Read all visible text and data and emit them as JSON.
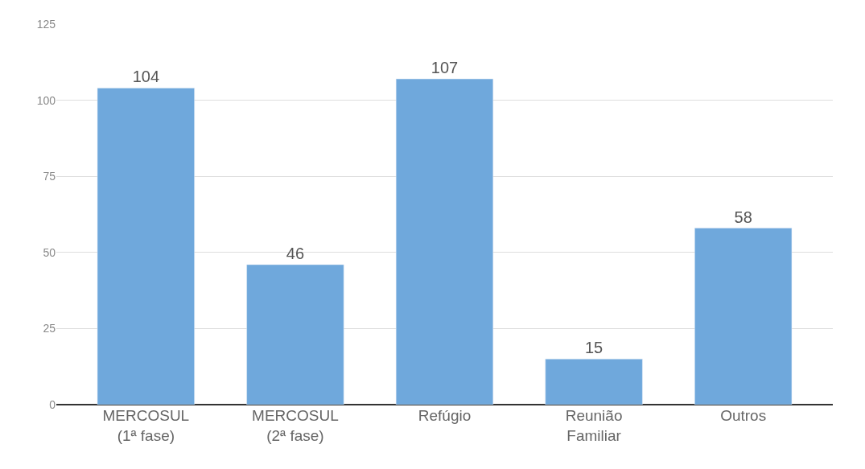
{
  "chart_data": {
    "type": "bar",
    "categories": [
      "MERCOSUL\n(1ª fase)",
      "MERCOSUL\n(2ª fase)",
      "Refúgio",
      "Reunião\nFamiliar",
      "Outros"
    ],
    "values": [
      104,
      46,
      107,
      15,
      58
    ],
    "color": "#6fa8dc",
    "ylim": [
      0,
      125
    ],
    "yticks": [
      0,
      25,
      50,
      75,
      100,
      125
    ],
    "grid": "y",
    "data_labels": true,
    "legend": false
  }
}
